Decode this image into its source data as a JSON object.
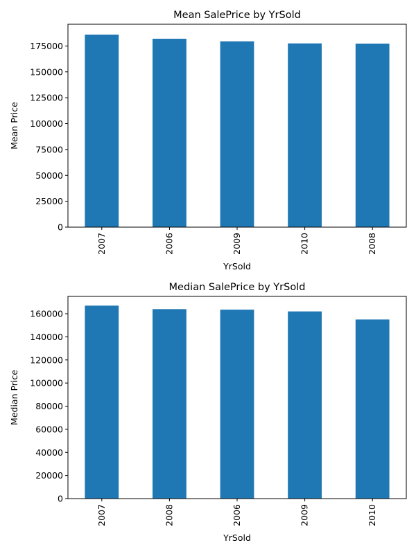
{
  "chart_data": [
    {
      "type": "bar",
      "title": "Mean SalePrice by YrSold",
      "xlabel": "YrSold",
      "ylabel": "Mean Price",
      "categories": [
        "2007",
        "2006",
        "2009",
        "2010",
        "2008"
      ],
      "values": [
        186000,
        182000,
        179500,
        177500,
        177300
      ],
      "ylim": [
        0,
        196000
      ],
      "yticks": [
        0,
        25000,
        50000,
        75000,
        100000,
        125000,
        150000,
        175000
      ],
      "bar_color": "#1f77b4",
      "grid": false
    },
    {
      "type": "bar",
      "title": "Median SalePrice by YrSold",
      "xlabel": "YrSold",
      "ylabel": "Median Price",
      "categories": [
        "2007",
        "2008",
        "2006",
        "2009",
        "2010"
      ],
      "values": [
        167000,
        164000,
        163500,
        162000,
        155000
      ],
      "ylim": [
        0,
        175000
      ],
      "yticks": [
        0,
        20000,
        40000,
        60000,
        80000,
        100000,
        120000,
        140000,
        160000
      ],
      "bar_color": "#1f77b4",
      "grid": false
    }
  ]
}
